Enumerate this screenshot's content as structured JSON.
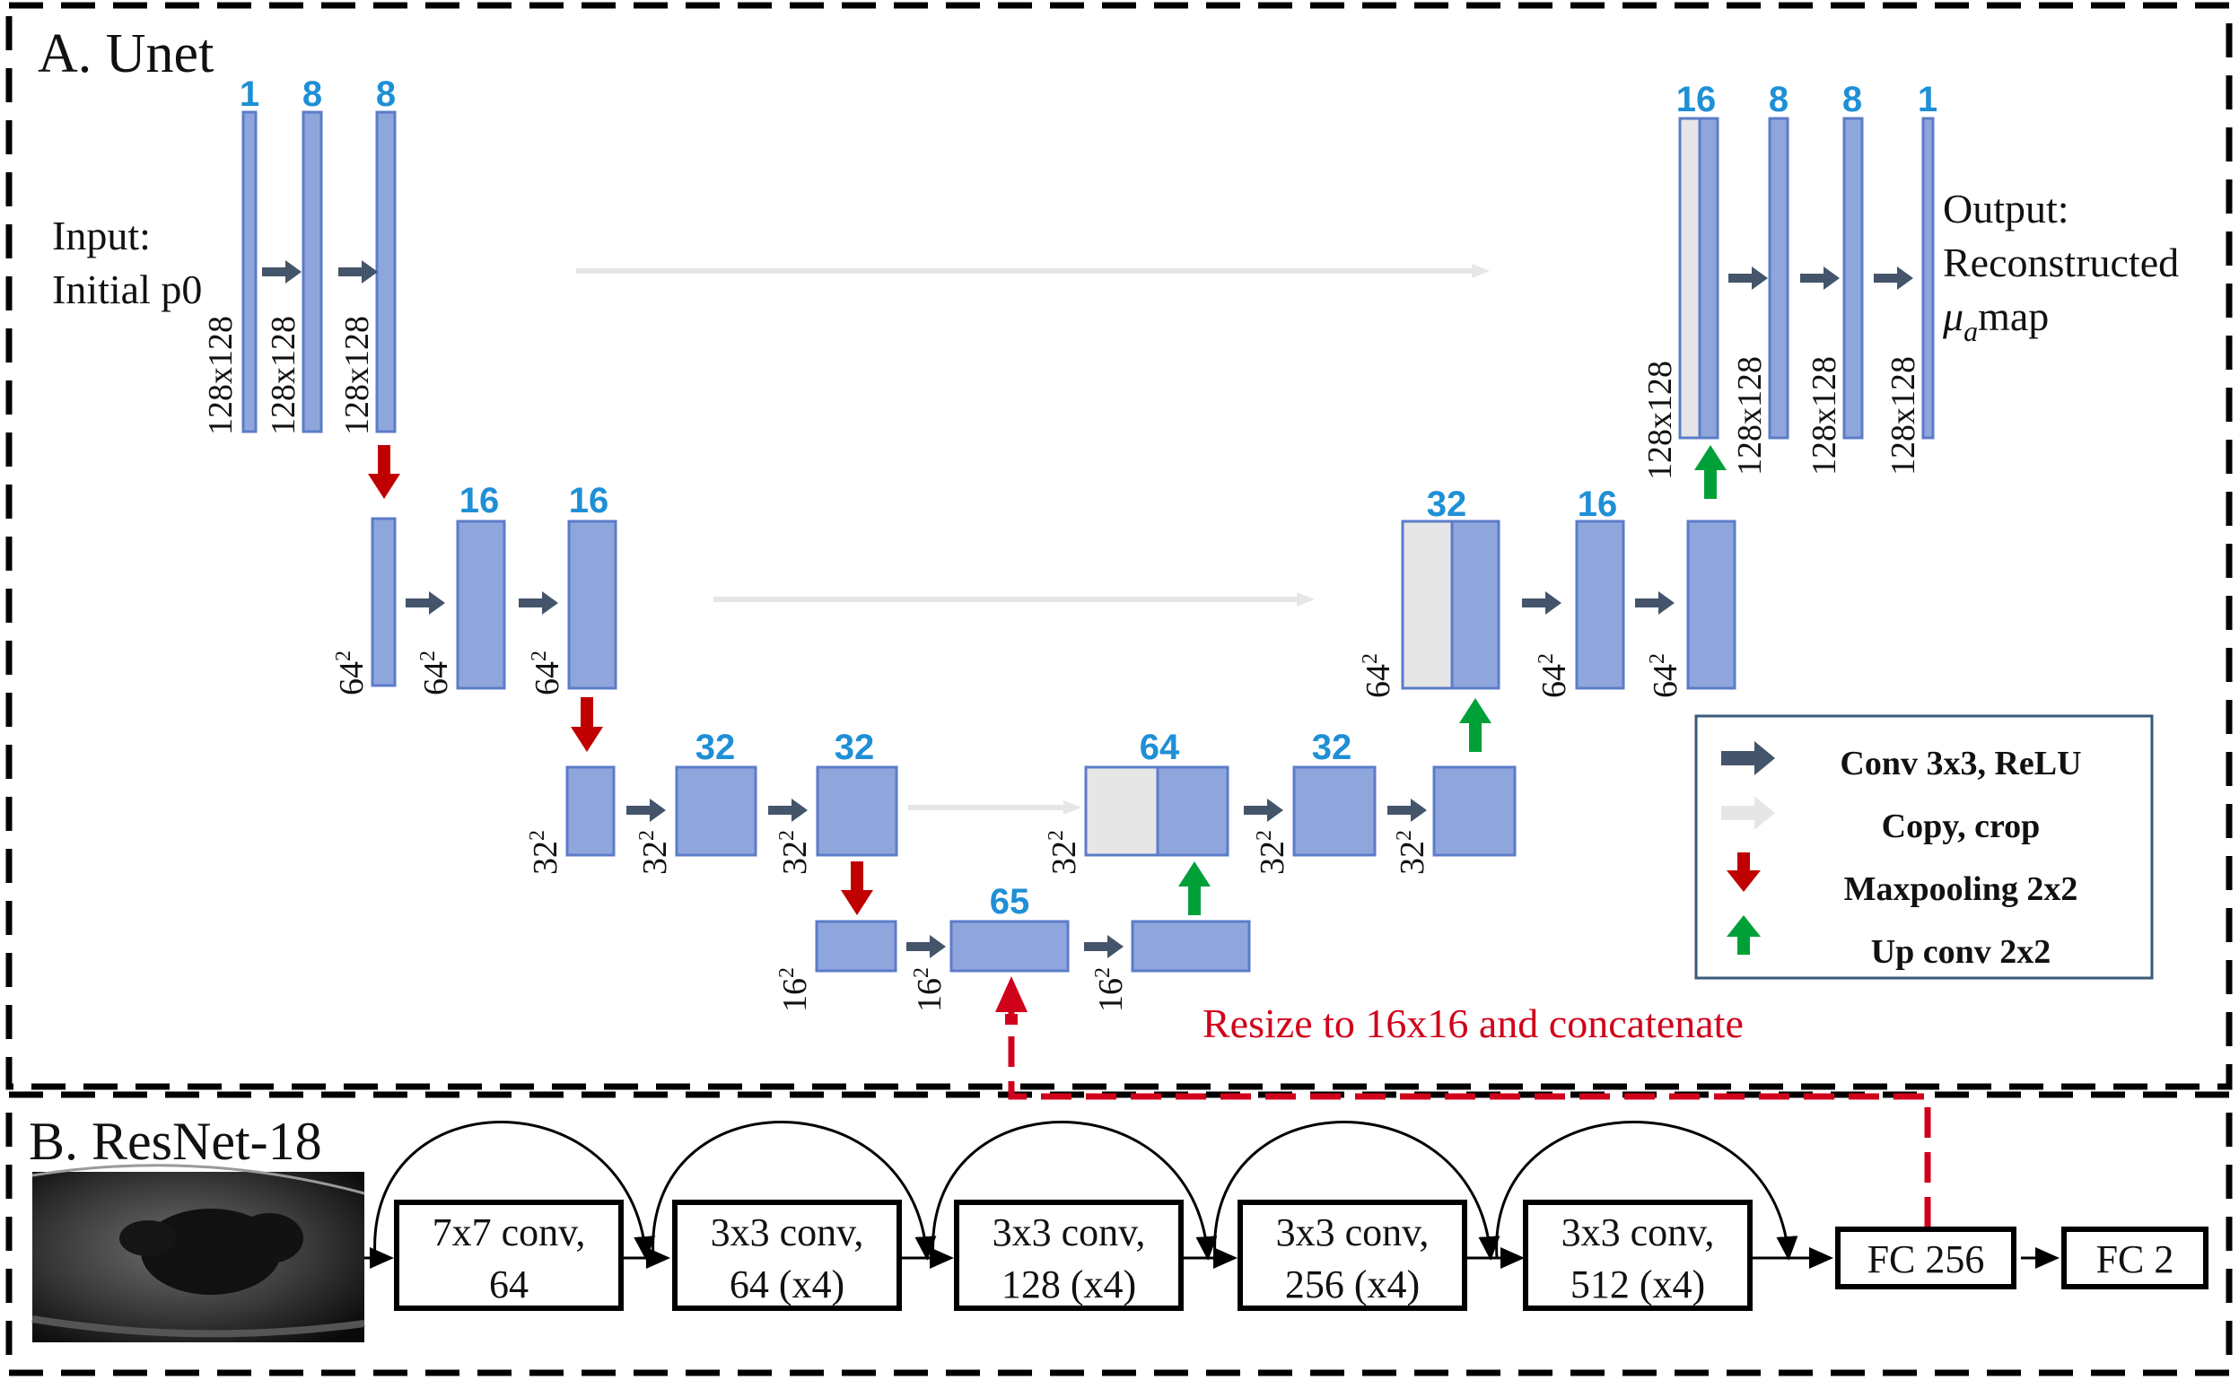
{
  "unet": {
    "title": "A. Unet",
    "input_label_line1": "Input:",
    "input_label_line2": "Initial p0",
    "output_label_line1": "Output:",
    "output_label_line2": "Reconstructed",
    "output_label_mu": "μ",
    "output_label_sub": "a",
    "output_label_map": "map",
    "channels": {
      "e1a": "1",
      "e1b": "8",
      "e1c": "8",
      "e2b": "16",
      "e2c": "16",
      "e3b": "32",
      "e3c": "32",
      "bottleneck": "65",
      "d3a": "64",
      "d3b": "32",
      "d2a": "32",
      "d2b": "16",
      "d1a": "16",
      "d1b": "8",
      "d1c": "8",
      "d1d": "1"
    },
    "dims": {
      "s128": "128x128",
      "s64": "64",
      "s32": "32",
      "s16": "16",
      "sup": "2"
    },
    "resize_note": "Resize to 16x16 and concatenate"
  },
  "legend": {
    "items": [
      {
        "label": "Conv 3x3, ReLU",
        "color": "#44546a",
        "icon": "arrow-right-icon"
      },
      {
        "label": "Copy, crop",
        "color": "#e6e6e6",
        "icon": "arrow-right-icon"
      },
      {
        "label": "Maxpooling 2x2",
        "color": "#c00000",
        "icon": "arrow-down-icon"
      },
      {
        "label": "Up conv 2x2",
        "color": "#00a039",
        "icon": "arrow-up-icon"
      }
    ]
  },
  "resnet": {
    "title": "B. ResNet-18",
    "blocks": [
      {
        "line1": "7x7 conv,",
        "line2": "64"
      },
      {
        "line1": "3x3 conv,",
        "line2": "64 (x4)"
      },
      {
        "line1": "3x3 conv,",
        "line2": "128 (x4)"
      },
      {
        "line1": "3x3 conv,",
        "line2": "256 (x4)"
      },
      {
        "line1": "3x3 conv,",
        "line2": "512 (x4)"
      }
    ],
    "fc1": "FC 256",
    "fc2": "FC 2"
  },
  "colors": {
    "feature_map": "#8fa6dd",
    "channel_text": "#1f8fd6",
    "conv_arrow": "#44546a",
    "copy_arrow": "#e6e6e6",
    "pool_arrow": "#c00000",
    "upconv_arrow": "#00a039",
    "resize_line": "#d0021b"
  }
}
